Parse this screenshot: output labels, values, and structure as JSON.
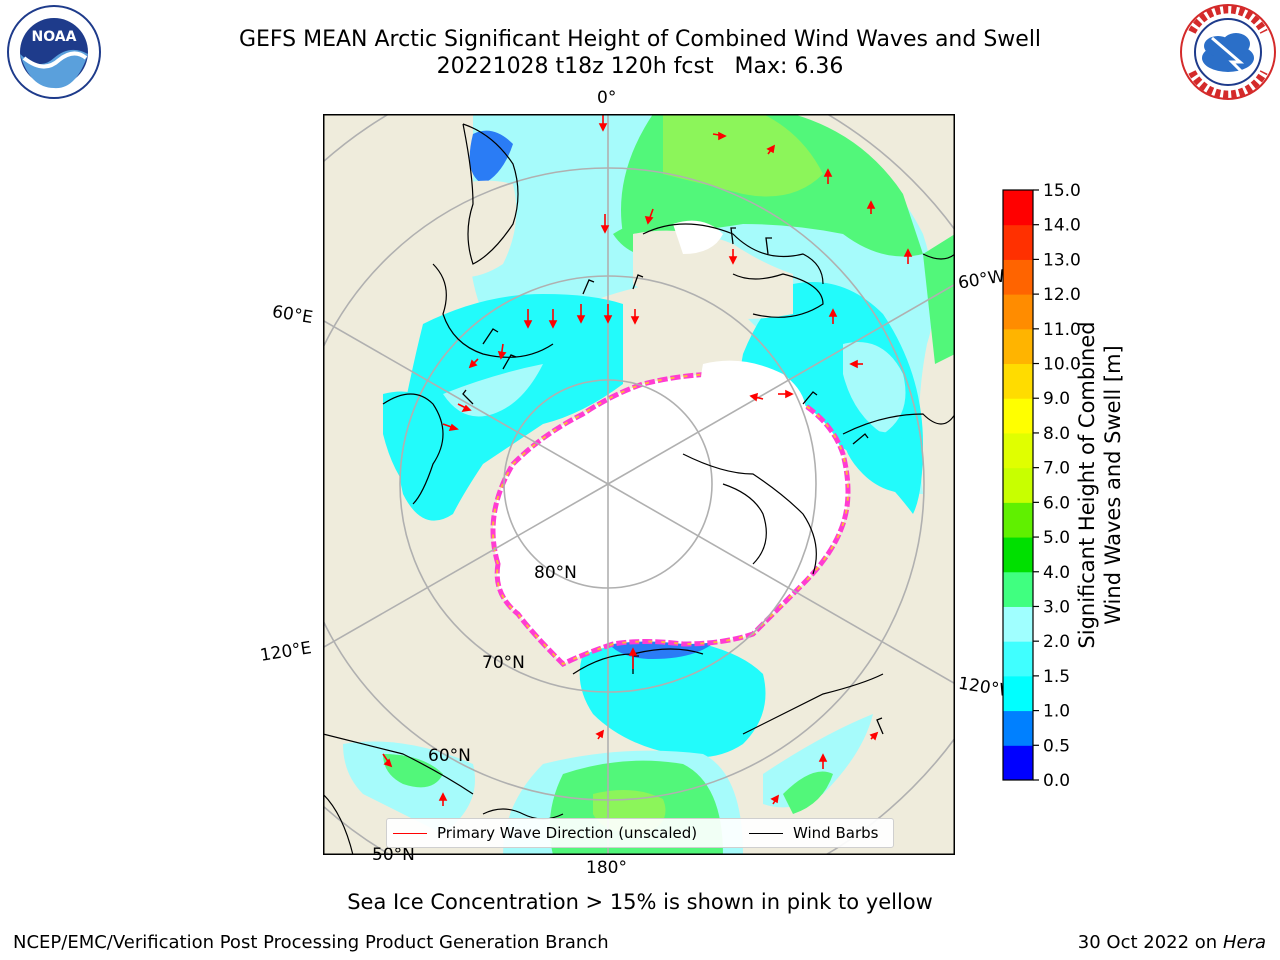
{
  "title": {
    "line1": "GEFS MEAN Arctic Significant Height of Combined Wind Waves and Swell",
    "line2": "20221028 t18z 120h fcst   Max: 6.36"
  },
  "logos": {
    "left": {
      "text": "NOAA",
      "ring_text": "NATIONAL OCEANIC AND ATMOSPHERIC ADMINISTRATION · U.S. DEPARTMENT OF COMMERCE"
    },
    "right": {
      "ring_text": "NATIONAL WEATHER SERVICE"
    }
  },
  "map": {
    "projection": "north-polar-stereographic",
    "longitude_labels": [
      "0°",
      "60°W",
      "120°W",
      "180°",
      "120°E",
      "60°E"
    ],
    "latitude_labels": [
      "80°N",
      "70°N",
      "60°N",
      "50°N"
    ],
    "colors": {
      "land": "#efecdc",
      "ice": "#ffffff",
      "coast": "#000000",
      "grid": "#b0b0b0"
    }
  },
  "legend": {
    "items": [
      {
        "label": "Primary Wave Direction (unscaled)",
        "color": "#ff0000"
      },
      {
        "label": "Wind Barbs",
        "color": "#000000"
      }
    ]
  },
  "colorbar": {
    "title_line1": "Significant Height of Combined",
    "title_line2": "Wind Waves and Swell [m]",
    "ticks": [
      "0.0",
      "0.5",
      "1.0",
      "1.5",
      "2.0",
      "3.0",
      "4.0",
      "5.0",
      "6.0",
      "7.0",
      "8.0",
      "9.0",
      "10.0",
      "11.0",
      "12.0",
      "13.0",
      "14.0",
      "15.0"
    ],
    "colors": [
      "#0000ff",
      "#0080ff",
      "#00ffff",
      "#40ffff",
      "#a0ffff",
      "#40ff80",
      "#00e000",
      "#60f000",
      "#c8ff00",
      "#e0ff00",
      "#ffff00",
      "#ffdc00",
      "#ffb400",
      "#ff8c00",
      "#ff6400",
      "#ff3000",
      "#ff0000"
    ]
  },
  "footnote": "Sea Ice Concentration > 15% is shown in pink to yellow",
  "footer": {
    "left": "NCEP/EMC/Verification Post Processing Product Generation Branch",
    "right_date": "30 Oct 2022 on",
    "right_host": "Hera"
  }
}
